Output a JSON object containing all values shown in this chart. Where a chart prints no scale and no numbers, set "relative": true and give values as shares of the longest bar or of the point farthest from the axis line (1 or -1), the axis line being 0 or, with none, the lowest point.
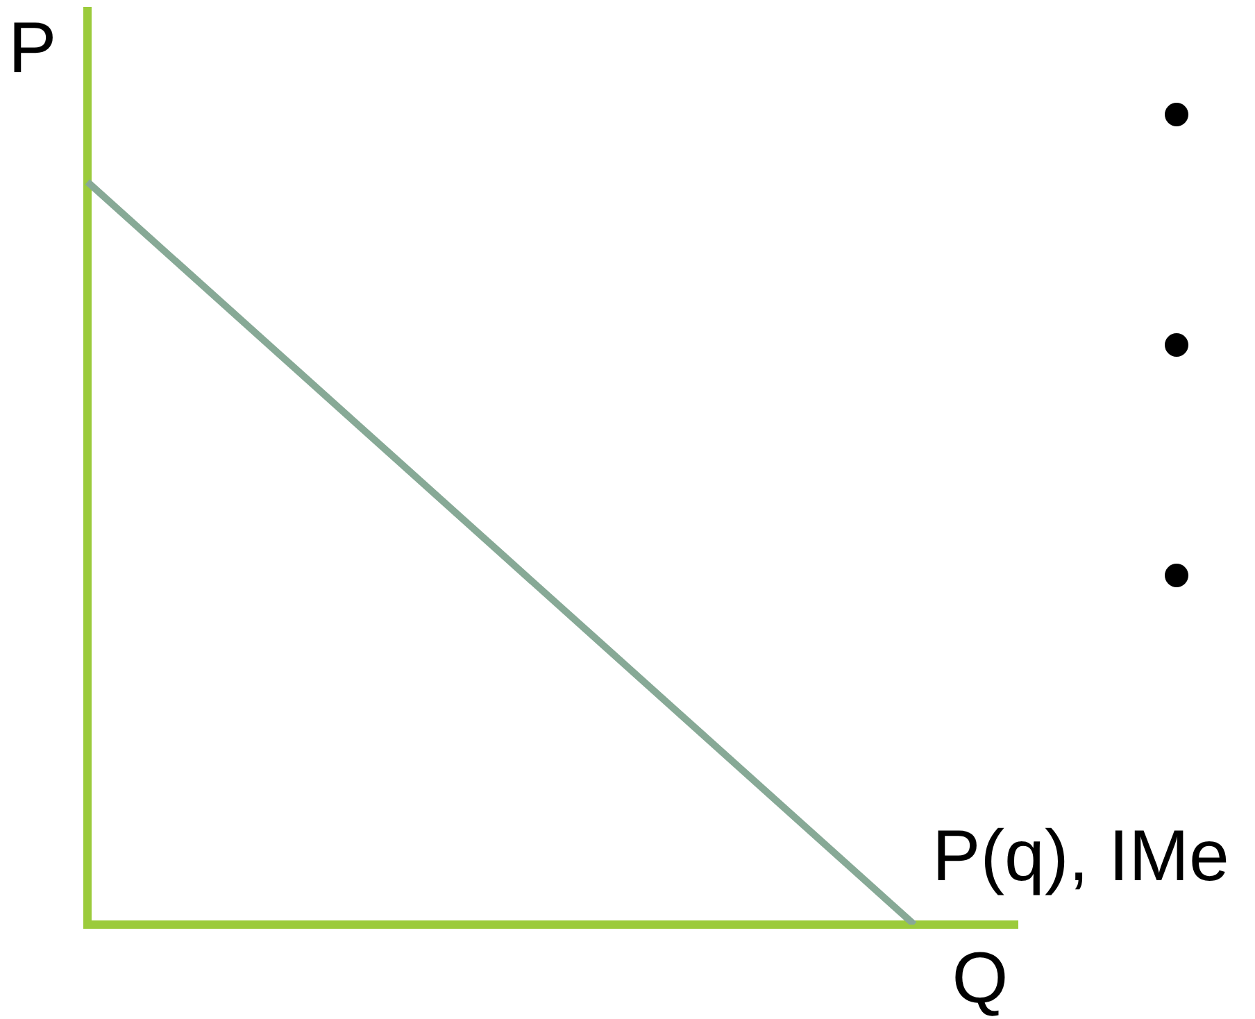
{
  "chart_data": {
    "type": "line",
    "xlabel": "Q",
    "ylabel": "P",
    "categories": [
      null,
      null,
      null,
      null,
      null,
      null,
      null,
      null,
      null,
      null
    ],
    "series": [
      {
        "name": "P(q), IMe",
        "color": "#87a996",
        "values": [
          1,
          0.875,
          0.75,
          0.625,
          0.5,
          0.375,
          0.25,
          0.125,
          0,
          null
        ]
      }
    ],
    "relative": true,
    "marker": "none"
  }
}
